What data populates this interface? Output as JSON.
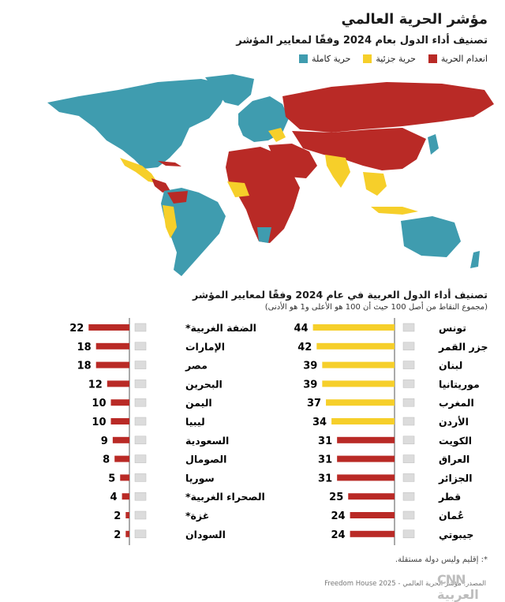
{
  "header": {
    "title": "مؤشر الحرية العالمي",
    "subtitle": "تصنيف أداء الدول بعام 2024 وفقًا لمعايير المؤشر"
  },
  "legend": [
    {
      "label": "حرية كاملة",
      "color": "#3f9caf"
    },
    {
      "label": "حرية جزئية",
      "color": "#f6cf2a"
    },
    {
      "label": "انعدام الحرية",
      "color": "#b92a26"
    }
  ],
  "colors": {
    "free": "#3f9caf",
    "partly_free": "#f6cf2a",
    "not_free": "#b92a26",
    "axis": "#555555",
    "ocean": "#ffffff"
  },
  "arab_section": {
    "title": "تصنيف أداء الدول العربية في عام 2024 وفقًا لمعايير المؤشر",
    "subtitle": "(مجموع النقاط من أصل 100 حيث أن 100 هو الأعلى و1 هو الأدنى)"
  },
  "chart_data": {
    "type": "bar",
    "title": "تصنيف أداء الدول العربية في عام 2024 وفقًا لمعايير المؤشر",
    "xlim": [
      0,
      100
    ],
    "columns": [
      {
        "column": "right",
        "categories": [
          "تونس",
          "جزر القمر",
          "لبنان",
          "موريتانيا",
          "المغرب",
          "الأردن",
          "الكويت",
          "العراق",
          "الجزائر",
          "قطر",
          "عُمان",
          "جيبوتي"
        ],
        "values": [
          44,
          42,
          39,
          39,
          37,
          34,
          31,
          31,
          31,
          25,
          24,
          24
        ],
        "status": [
          "partly_free",
          "partly_free",
          "partly_free",
          "partly_free",
          "partly_free",
          "partly_free",
          "not_free",
          "not_free",
          "not_free",
          "not_free",
          "not_free",
          "not_free"
        ]
      },
      {
        "column": "left",
        "categories": [
          "الضفة الغربية*",
          "الإمارات",
          "مصر",
          "البحرين",
          "اليمن",
          "ليبيا",
          "السعودية",
          "الصومال",
          "سوريا",
          "الصحراء الغربية*",
          "غزة*",
          "السودان"
        ],
        "values": [
          22,
          18,
          18,
          12,
          10,
          10,
          9,
          8,
          5,
          4,
          2,
          2
        ],
        "status": [
          "not_free",
          "not_free",
          "not_free",
          "not_free",
          "not_free",
          "not_free",
          "not_free",
          "not_free",
          "not_free",
          "not_free",
          "not_free",
          "not_free"
        ]
      }
    ]
  },
  "footnote": "*: إقليم وليس دولة مستقلة.",
  "source": "المصدر: مؤشر الحرية العالمي - 2025 Freedom House",
  "logo_text": "CNN العربية"
}
